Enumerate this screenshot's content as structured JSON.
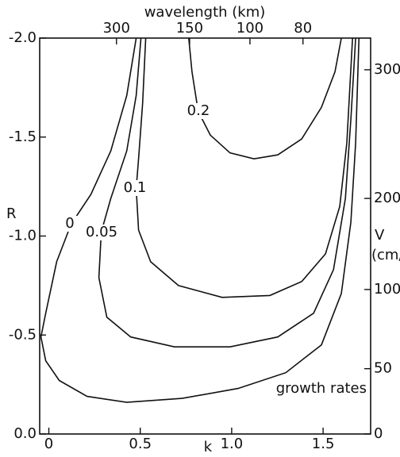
{
  "chart_data": {
    "type": "line",
    "x_label": "k",
    "y_label": "R",
    "x2_label": "wavelength (km)",
    "y2_label": "V",
    "y2_unit": "(cm/s)",
    "annotation": "growth rates",
    "color": "#111111",
    "xlim": [
      -0.05,
      1.76
    ],
    "xticks": [
      0,
      0.5,
      {
        "value": 1,
        "label": "1.0"
      },
      1.5
    ],
    "ylim": [
      0,
      -2
    ],
    "yticks": [
      {
        "value": -2,
        "label": "-2.0"
      },
      -1.5,
      {
        "value": -1,
        "label": "-1.0"
      },
      -0.5,
      {
        "value": 0,
        "label": "0.0"
      }
    ],
    "x2ticks": [
      300,
      150,
      100,
      80
    ],
    "x2tick_k": [
      0.37,
      0.77,
      1.1,
      1.39
    ],
    "y2ticks": [
      300,
      200,
      100,
      50,
      0
    ],
    "y2tick_R": [
      -1.84,
      -1.19,
      -0.73,
      -0.33,
      0
    ],
    "series": [
      {
        "name": "0",
        "x": [
          0.478,
          0.426,
          0.339,
          0.23,
          0.122,
          0.043,
          -0.017,
          -0.043,
          -0.017,
          0.057,
          0.209,
          0.426,
          0.73,
          1.035,
          1.296,
          1.491,
          1.6,
          1.652,
          1.678,
          1.696
        ],
        "values": [
          -2.0,
          -1.71,
          -1.43,
          -1.21,
          -1.06,
          -0.87,
          -0.61,
          -0.49,
          -0.37,
          -0.27,
          -0.19,
          -0.16,
          -0.18,
          -0.23,
          -0.31,
          -0.45,
          -0.71,
          -1.07,
          -1.47,
          -2.0
        ]
      },
      {
        "name": "0.05",
        "x": [
          0.504,
          0.478,
          0.426,
          0.339,
          0.287,
          0.274,
          0.317,
          0.448,
          0.687,
          0.991,
          1.252,
          1.448,
          1.557,
          1.622,
          1.652,
          1.678
        ],
        "values": [
          -2.0,
          -1.71,
          -1.43,
          -1.19,
          -1.02,
          -0.79,
          -0.59,
          -0.49,
          -0.44,
          -0.44,
          -0.49,
          -0.61,
          -0.83,
          -1.19,
          -1.59,
          -2.0
        ]
      },
      {
        "name": "0.1",
        "x": [
          0.53,
          0.513,
          0.491,
          0.478,
          0.491,
          0.557,
          0.709,
          0.948,
          1.209,
          1.383,
          1.513,
          1.591,
          1.63,
          1.661
        ],
        "values": [
          -2.0,
          -1.67,
          -1.39,
          -1.24,
          -1.03,
          -0.87,
          -0.75,
          -0.69,
          -0.7,
          -0.77,
          -0.91,
          -1.15,
          -1.47,
          -2.0
        ]
      },
      {
        "name": "0.2",
        "x": [
          0.765,
          0.783,
          0.817,
          0.883,
          0.991,
          1.122,
          1.252,
          1.383,
          1.491,
          1.565,
          1.6
        ],
        "values": [
          -2.0,
          -1.83,
          -1.63,
          -1.51,
          -1.42,
          -1.39,
          -1.41,
          -1.49,
          -1.65,
          -1.83,
          -2.0
        ]
      }
    ]
  }
}
